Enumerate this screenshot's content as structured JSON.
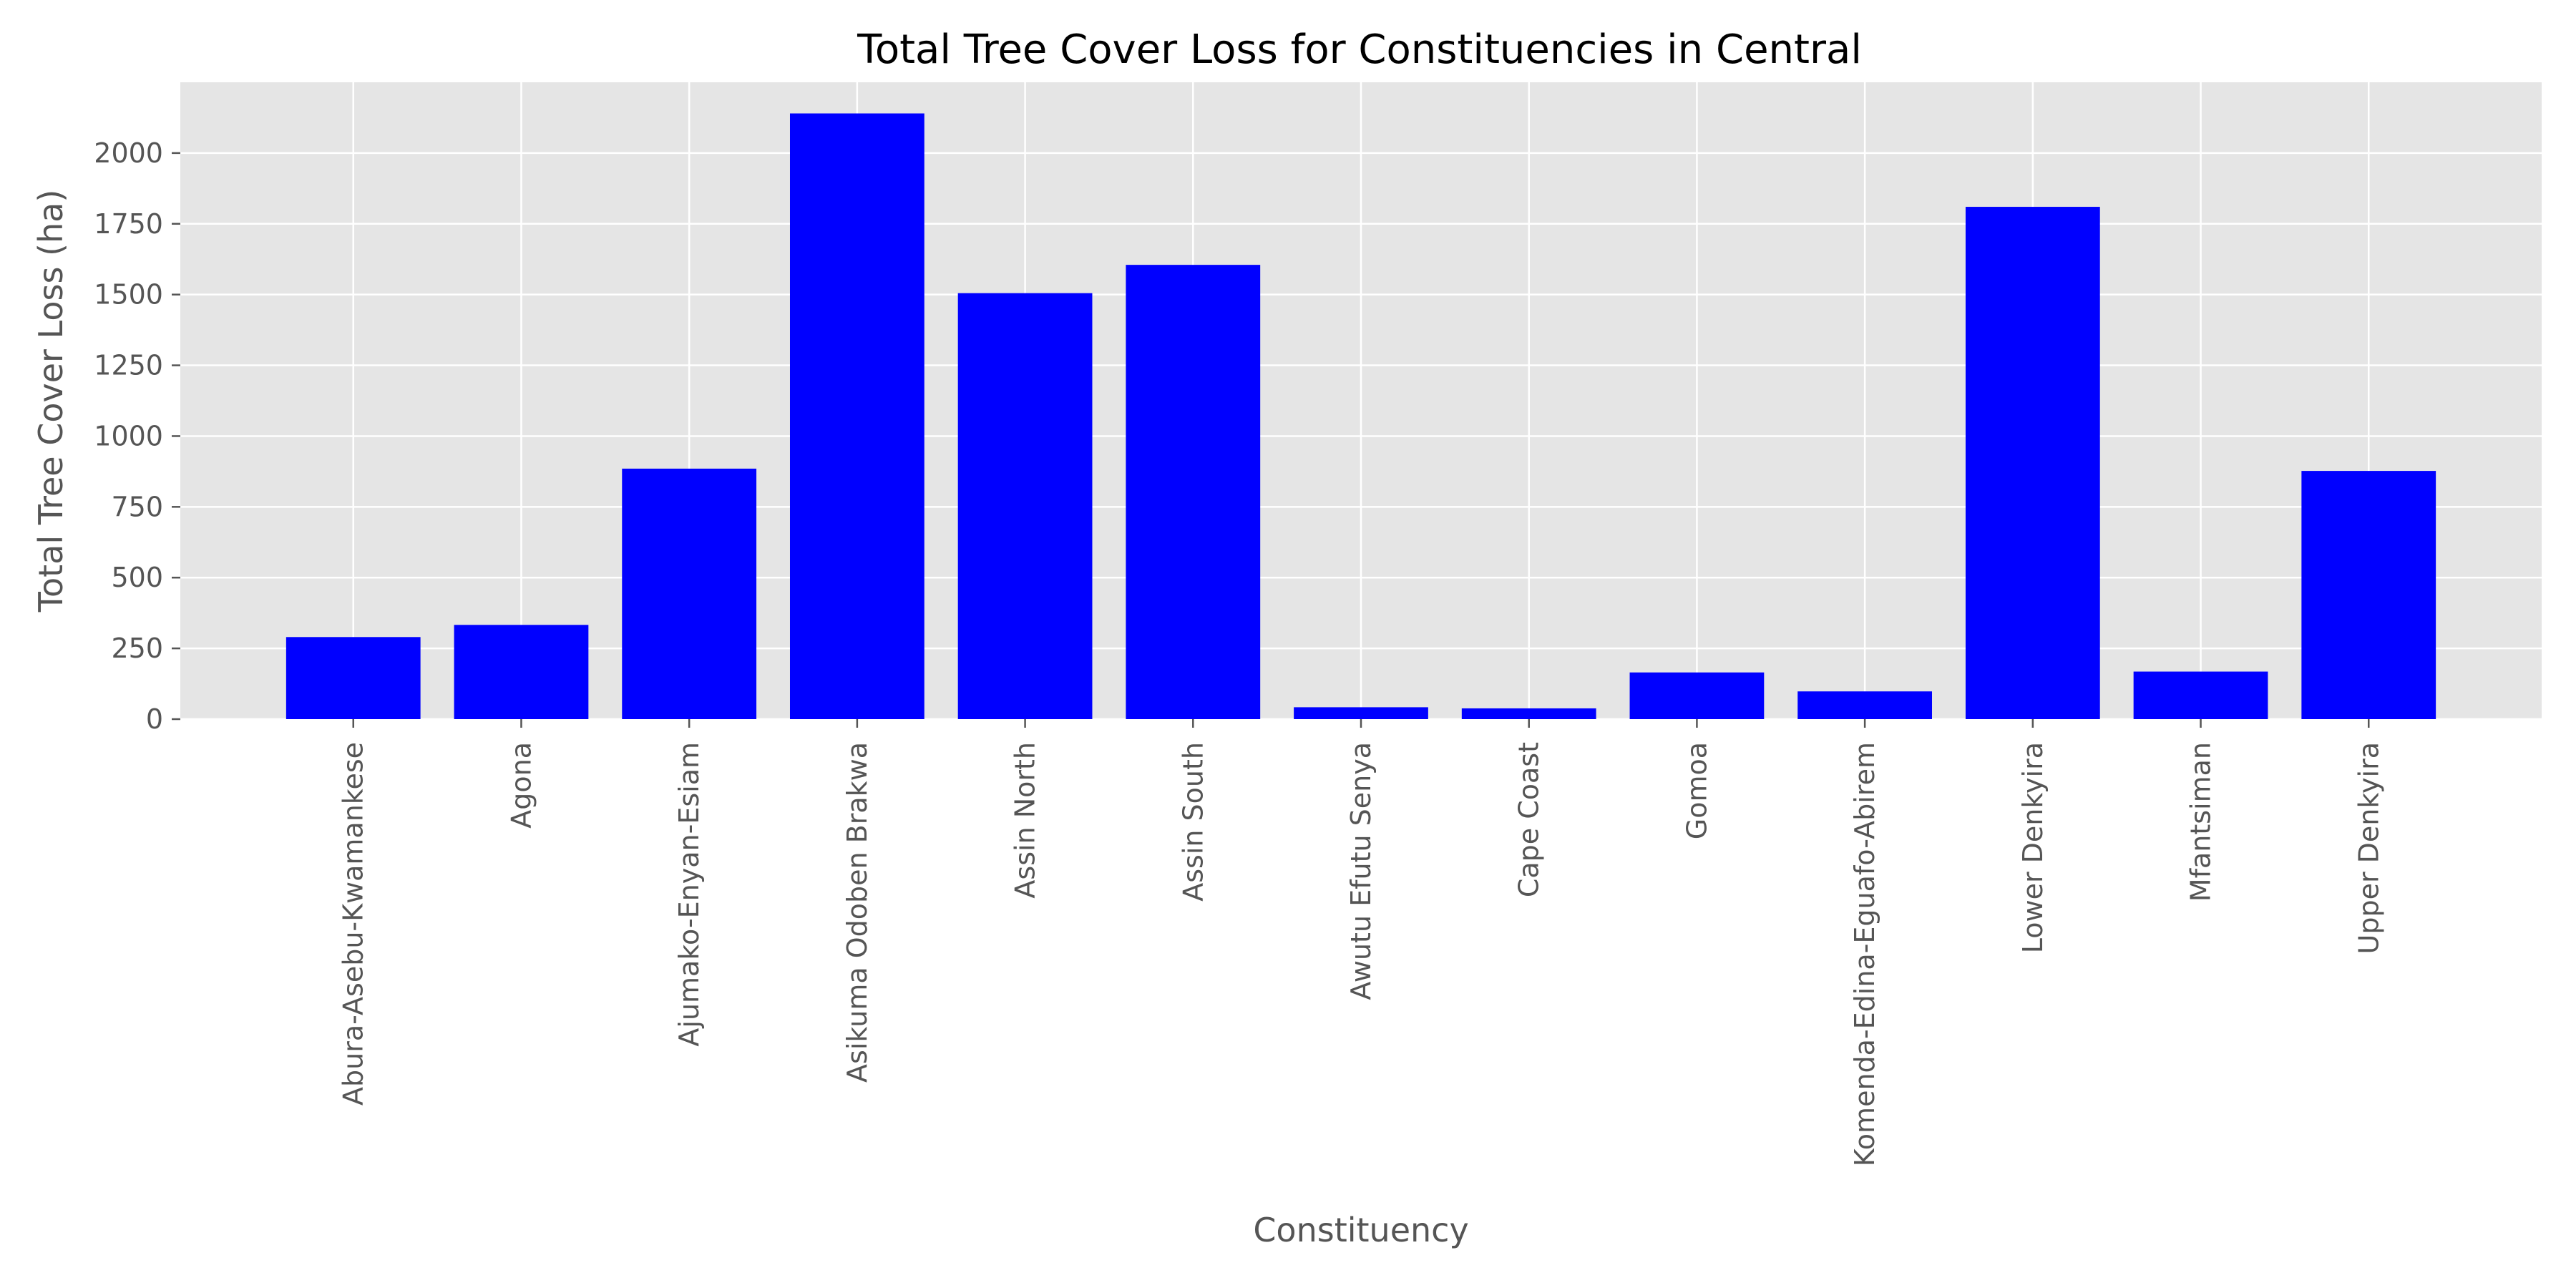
{
  "chart_data": {
    "type": "bar",
    "title": "Total Tree Cover Loss for Constituencies in Central",
    "xlabel": "Constituency",
    "ylabel": "Total Tree Cover Loss (ha)",
    "ylim": [
      0,
      2250
    ],
    "yticks": [
      0,
      250,
      500,
      750,
      1000,
      1250,
      1500,
      1750,
      2000
    ],
    "grid": true,
    "legend": "none",
    "categories": [
      "Abura-Asebu-Kwamankese",
      "Agona",
      "Ajumako-Enyan-Esiam",
      "Asikuma Odoben Brakwa",
      "Assin North",
      "Assin South",
      "Awutu Efutu Senya",
      "Cape Coast",
      "Gomoa",
      "Komenda-Edina-Eguafo-Abirem",
      "Lower Denkyira",
      "Mfantsiman",
      "Upper Denkyira"
    ],
    "values": [
      290,
      333,
      885,
      2140,
      1505,
      1605,
      42,
      38,
      165,
      98,
      1810,
      168,
      877
    ]
  },
  "colors": {
    "bar": "#0000ff",
    "plot_background": "#e5e5e5",
    "grid": "#ffffff",
    "text": "#555555",
    "tick": "#555555"
  }
}
